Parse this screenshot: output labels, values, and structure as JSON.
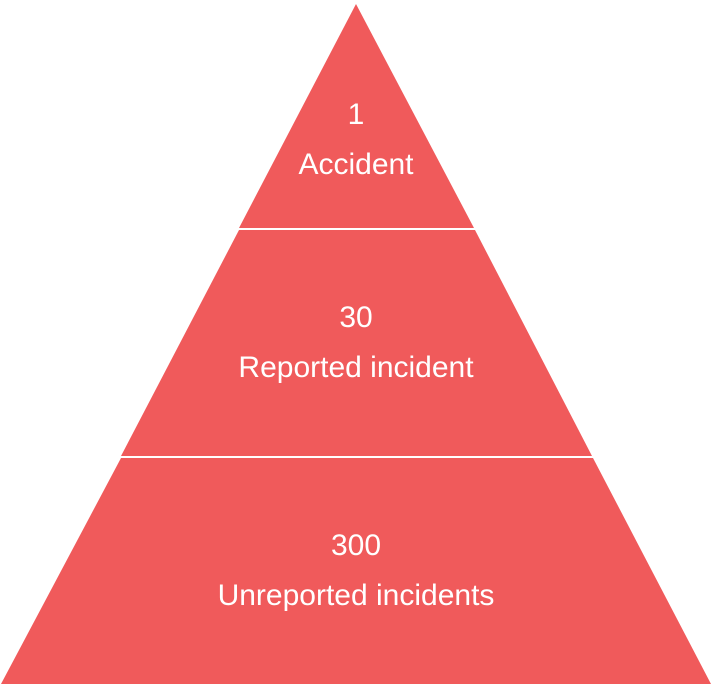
{
  "colors": {
    "tier_fill": "#f05a5b",
    "divider": "#ffffff",
    "label_text": "#ffffff",
    "background": "#ffffff"
  },
  "pyramid": {
    "tiers": [
      {
        "count": "1",
        "label": "Accident"
      },
      {
        "count": "30",
        "label": "Reported incident"
      },
      {
        "count": "300",
        "label": "Unreported incidents"
      }
    ]
  }
}
